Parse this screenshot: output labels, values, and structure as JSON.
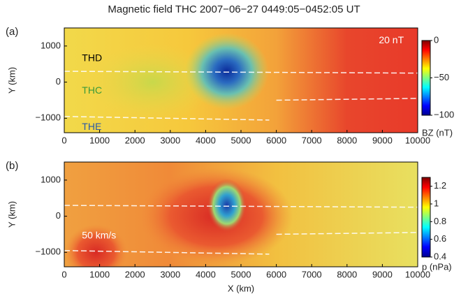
{
  "chart_data": [
    {
      "type": "heatmap",
      "title": "Magnetic field  THC  2007−06−27  0449:05−0452:05 UT",
      "panel_label": "(a)",
      "y_label": "Y (km)",
      "colorbar_label": "BZ (nT)",
      "colormap": "jet",
      "xlim": [
        0,
        10000
      ],
      "xticks": [
        0,
        1000,
        2000,
        3000,
        4000,
        5000,
        6000,
        7000,
        8000,
        9000,
        10000
      ],
      "ylim": [
        -1400,
        1500
      ],
      "yticks": [
        {
          "value": -1000,
          "label": "−1000"
        },
        0,
        1000
      ],
      "clim": [
        -100,
        0
      ],
      "cticks": [
        {
          "value": -100,
          "label": "−100"
        },
        {
          "value": -50,
          "label": "−50"
        },
        0
      ],
      "annotations": [
        {
          "text": "20 nT",
          "color": "#ffffff"
        },
        {
          "text": "THD",
          "color": "#000000"
        },
        {
          "text": "THC",
          "color": "#3a9a3a"
        },
        {
          "text": "THE",
          "color": "#2a5aa8"
        }
      ]
    },
    {
      "type": "heatmap",
      "panel_label": "(b)",
      "y_label": "Y (km)",
      "x_label": "X (km)",
      "colorbar_label": "p (nPa)",
      "colormap": "jet",
      "xlim": [
        0,
        10000
      ],
      "xticks": [
        0,
        1000,
        2000,
        3000,
        4000,
        5000,
        6000,
        7000,
        8000,
        9000,
        10000
      ],
      "ylim": [
        -1400,
        1500
      ],
      "yticks": [
        {
          "value": -1000,
          "label": "−1000"
        },
        0,
        1000
      ],
      "clim": [
        0.4,
        1.3
      ],
      "cticks": [
        0.4,
        0.6,
        0.8,
        1,
        1.2
      ],
      "annotations": [
        {
          "text": "50 km/s",
          "color": "#ffffff"
        }
      ]
    }
  ]
}
